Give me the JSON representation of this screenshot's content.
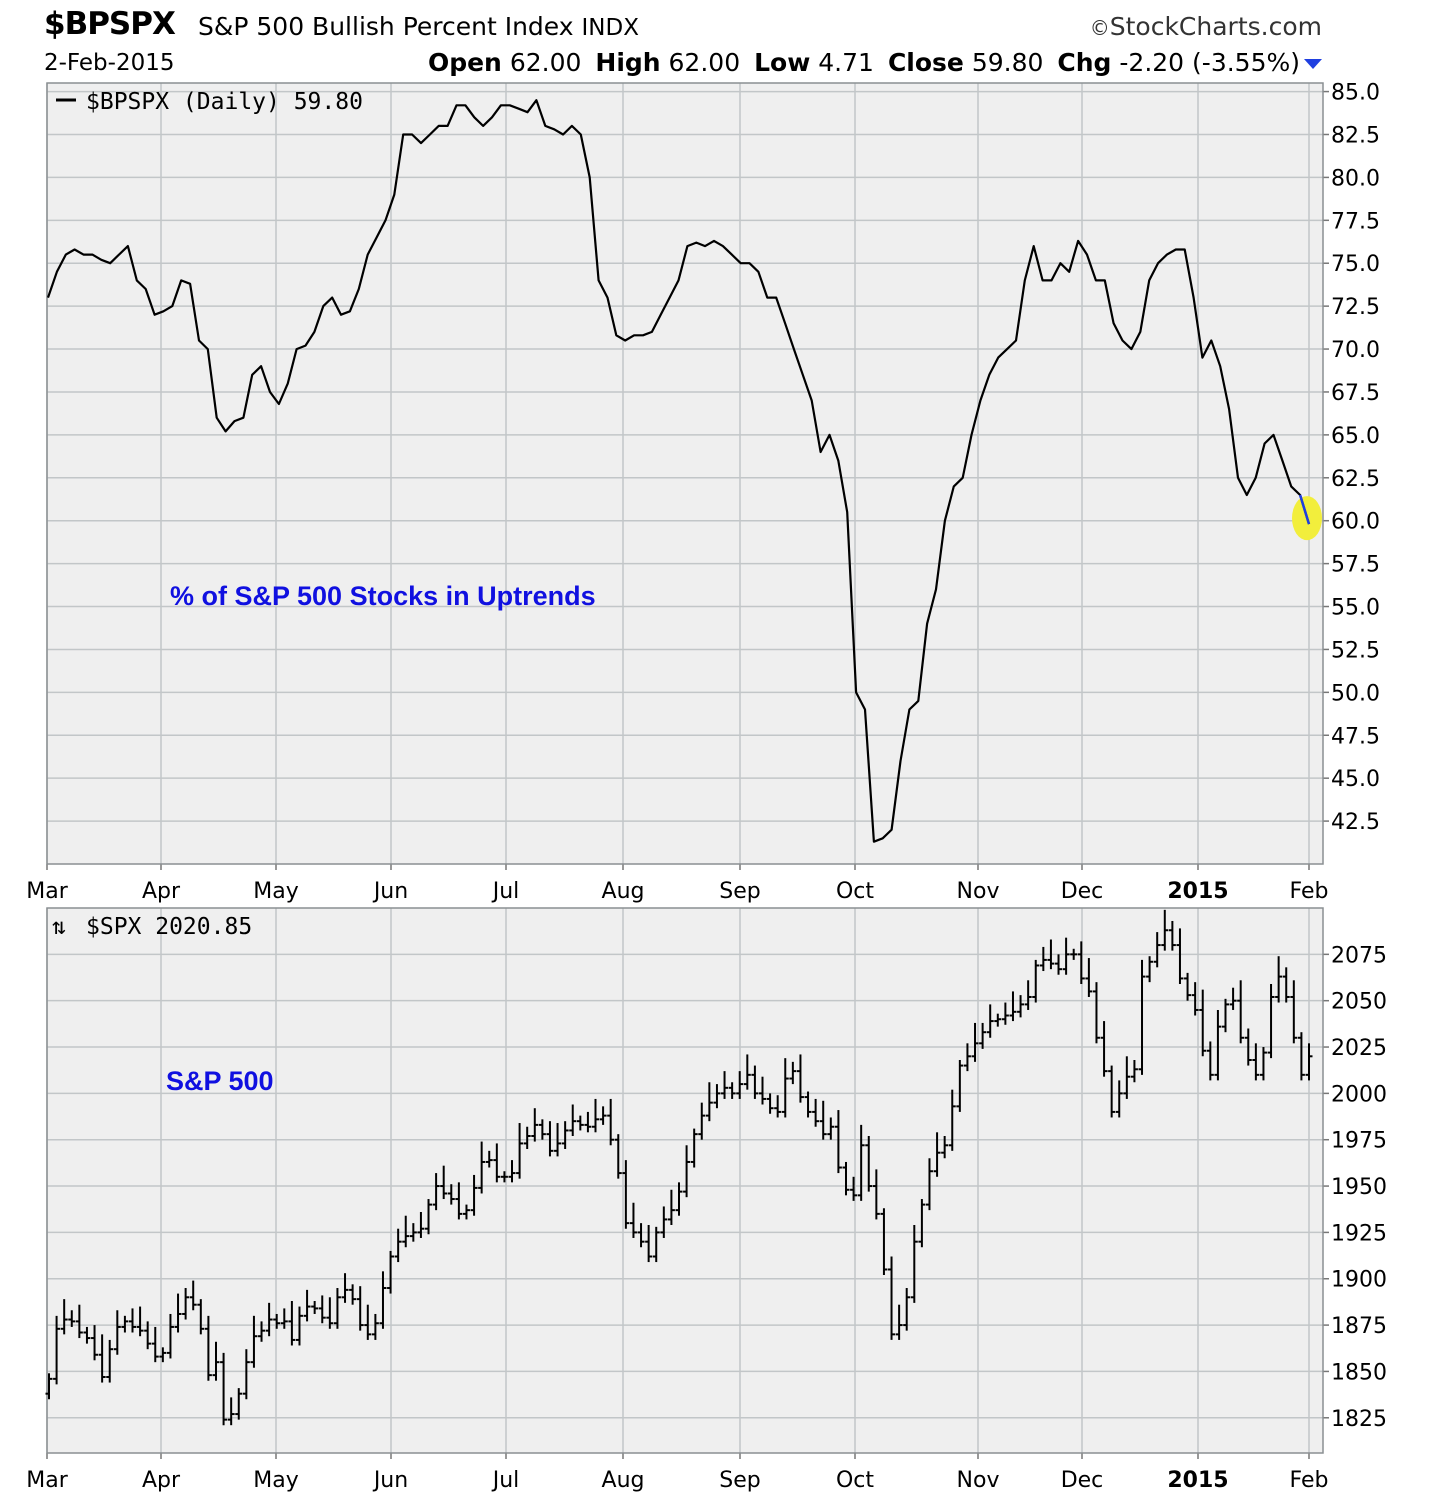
{
  "header": {
    "symbol": "$BPSPX",
    "name": "S&P 500 Bullish Percent Index",
    "exchange": "INDX",
    "brand": "StockCharts.com",
    "date": "2-Feb-2015",
    "open_label": "Open",
    "open": "62.00",
    "high_label": "High",
    "high": "62.00",
    "low_label": "Low",
    "low": "4.71",
    "close_label": "Close",
    "close": "59.80",
    "chg_label": "Chg",
    "chg": "-2.20 (-3.55%)"
  },
  "chart_data": [
    {
      "type": "line",
      "legend": "$BPSPX (Daily) 59.80",
      "annotation": "% of S&P 500 Stocks in Uptrends",
      "x_labels": [
        "Mar",
        "Apr",
        "May",
        "Jun",
        "Jul",
        "Aug",
        "Sep",
        "Oct",
        "Nov",
        "Dec",
        "2015",
        "Feb"
      ],
      "bold_x_label": "2015",
      "y_ticks": [
        42.5,
        45.0,
        47.5,
        50.0,
        52.5,
        55.0,
        57.5,
        60.0,
        62.5,
        65.0,
        67.5,
        70.0,
        72.5,
        75.0,
        77.5,
        80.0,
        82.5,
        85.0
      ],
      "ylim": [
        40.0,
        85.5
      ],
      "grid": true,
      "line_color": "#000000",
      "highlight_color": "#f2ee3c",
      "series": [
        {
          "values": [
            73.0,
            74.5,
            75.5,
            75.8,
            75.5,
            75.5,
            75.2,
            75.0,
            75.5,
            76.0,
            74.0,
            73.5,
            72.0,
            72.2,
            72.5,
            74.0,
            73.8,
            70.5,
            70.0,
            66.0,
            65.2,
            65.8,
            66.0,
            68.5,
            69.0,
            67.5,
            66.8,
            68.0,
            70.0,
            70.2,
            71.0,
            72.5,
            73.0,
            72.0,
            72.2,
            73.5,
            75.5,
            76.5,
            77.5,
            79.0,
            82.5,
            82.5,
            82.0,
            82.5,
            83.0,
            83.0,
            84.2,
            84.2,
            83.5,
            83.0,
            83.5,
            84.2,
            84.2,
            84.0,
            83.8,
            84.5,
            83.0,
            82.8,
            82.5,
            83.0,
            82.5,
            80.0,
            74.0,
            73.0,
            70.8,
            70.5,
            70.8,
            70.8,
            71.0,
            72.0,
            73.0,
            74.0,
            76.0,
            76.2,
            76.0,
            76.3,
            76.0,
            75.5,
            75.0,
            75.0,
            74.5,
            73.0,
            73.0,
            71.5,
            70.0,
            68.5,
            67.0,
            64.0,
            65.0,
            63.5,
            60.5,
            50.0,
            49.0,
            41.3,
            41.5,
            42.0,
            46.0,
            49.0,
            49.5,
            54.0,
            56.0,
            60.0,
            62.0,
            62.5,
            65.0,
            67.0,
            68.5,
            69.5,
            70.0,
            70.5,
            74.0,
            76.0,
            74.0,
            74.0,
            75.0,
            74.5,
            76.3,
            75.5,
            74.0,
            74.0,
            71.5,
            70.5,
            70.0,
            71.0,
            74.0,
            75.0,
            75.5,
            75.8,
            75.8,
            73.0,
            69.5,
            70.5,
            69.0,
            66.5,
            62.5,
            61.5,
            62.5,
            64.5,
            65.0,
            63.5,
            62.0,
            61.5,
            59.8
          ]
        }
      ]
    },
    {
      "type": "ohlc",
      "legend": "$SPX 2020.85",
      "annotation": "S&P 500",
      "x_labels": [
        "Mar",
        "Apr",
        "May",
        "Jun",
        "Jul",
        "Aug",
        "Sep",
        "Oct",
        "Nov",
        "Dec",
        "2015",
        "Feb"
      ],
      "bold_x_label": "2015",
      "y_ticks": [
        1825,
        1850,
        1875,
        1900,
        1925,
        1950,
        1975,
        2000,
        2025,
        2050,
        2075
      ],
      "ylim": [
        1806,
        2100
      ],
      "grid": true,
      "series": [
        {
          "closes": [
            1846,
            1873,
            1878,
            1877,
            1871,
            1868,
            1859,
            1847,
            1862,
            1874,
            1877,
            1874,
            1872,
            1865,
            1858,
            1860,
            1874,
            1881,
            1890,
            1886,
            1873,
            1848,
            1855,
            1824,
            1827,
            1838,
            1855,
            1869,
            1872,
            1878,
            1876,
            1877,
            1867,
            1880,
            1885,
            1884,
            1879,
            1876,
            1890,
            1894,
            1889,
            1875,
            1870,
            1876,
            1895,
            1912,
            1920,
            1923,
            1925,
            1927,
            1940,
            1950,
            1946,
            1943,
            1935,
            1937,
            1949,
            1963,
            1964,
            1955,
            1955,
            1957,
            1973,
            1977,
            1983,
            1978,
            1969,
            1973,
            1980,
            1985,
            1983,
            1982,
            1986,
            1988,
            1975,
            1957,
            1930,
            1925,
            1920,
            1912,
            1925,
            1932,
            1937,
            1947,
            1963,
            1978,
            1988,
            1995,
            2000,
            2003,
            2000,
            2005,
            2010,
            2000,
            1997,
            1992,
            1990,
            2008,
            2012,
            1998,
            1990,
            1985,
            1978,
            1982,
            1960,
            1948,
            1945,
            1972,
            1950,
            1935,
            1905,
            1870,
            1875,
            1890,
            1920,
            1940,
            1958,
            1968,
            1972,
            1993,
            2015,
            2020,
            2027,
            2033,
            2039,
            2040,
            2042,
            2044,
            2048,
            2052,
            2069,
            2072,
            2070,
            2067,
            2075,
            2075,
            2062,
            2055,
            2030,
            2012,
            1990,
            2000,
            2009,
            2013,
            2063,
            2071,
            2080,
            2088,
            2080,
            2062,
            2053,
            2045,
            2023,
            2010,
            2036,
            2048,
            2050,
            2030,
            2018,
            2010,
            2022,
            2052,
            2063,
            2052,
            2030,
            2010,
            2020
          ]
        }
      ]
    }
  ]
}
